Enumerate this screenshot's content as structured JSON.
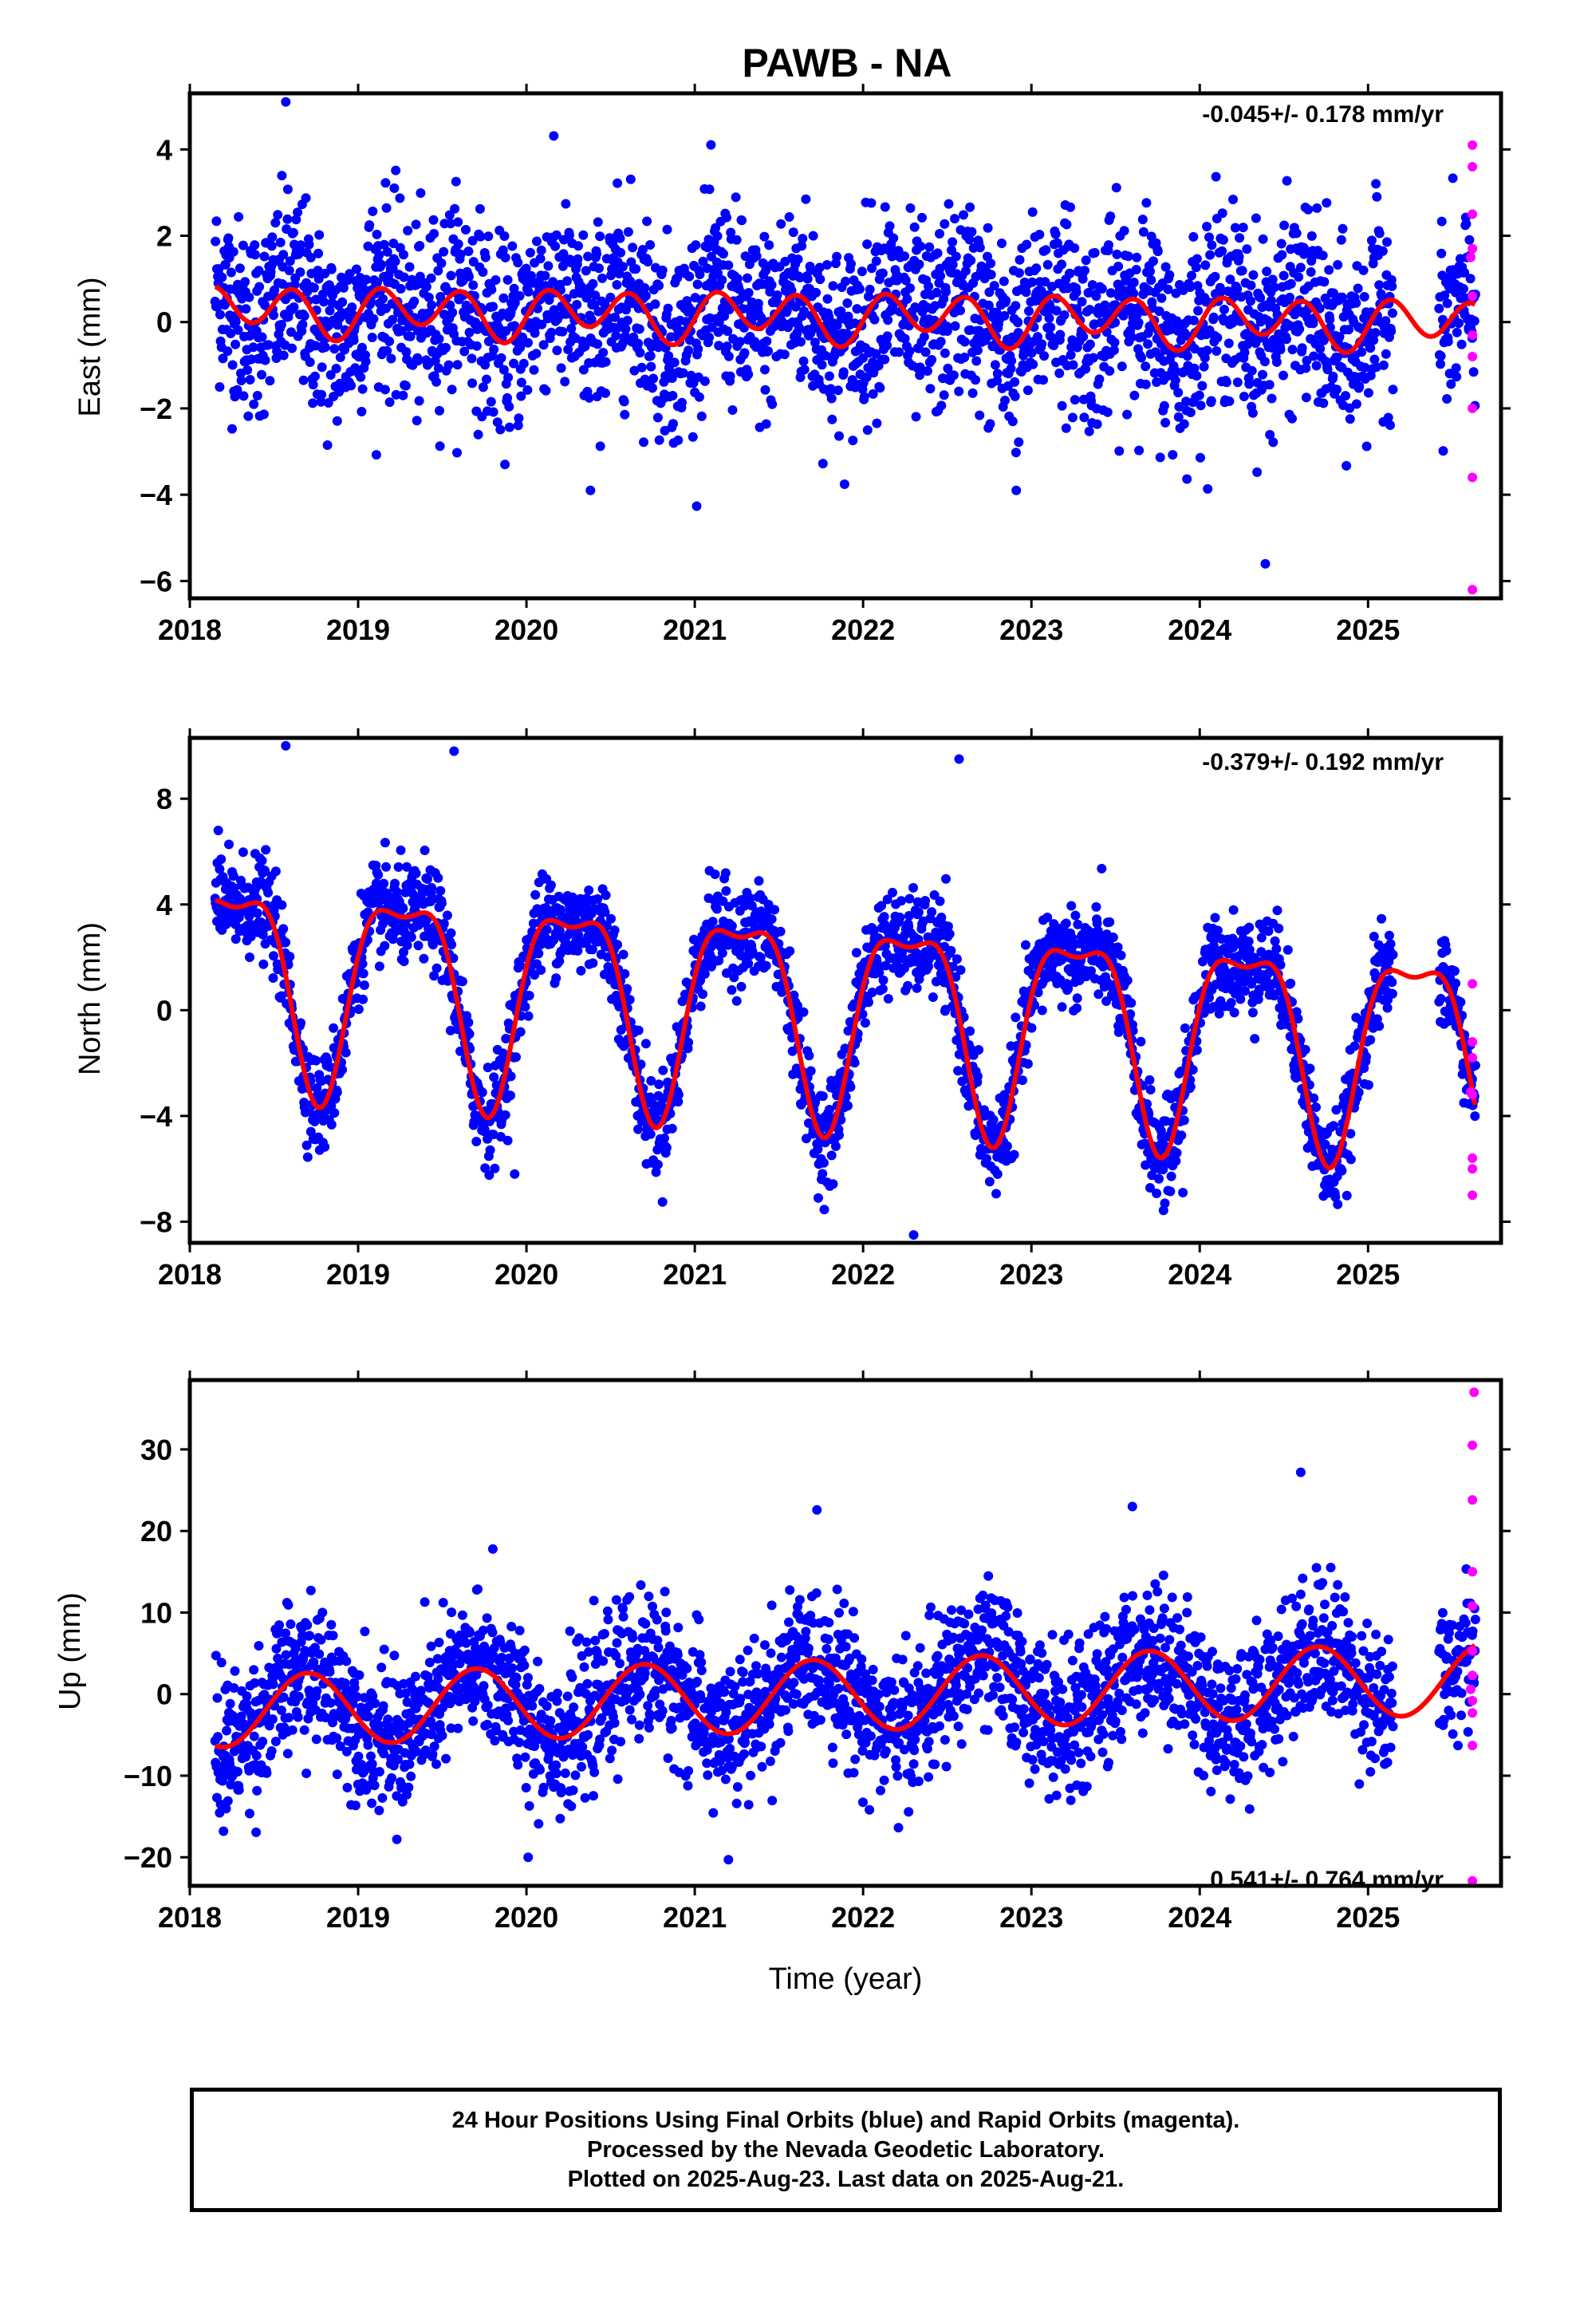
{
  "title": "PAWB - NA",
  "footer": {
    "line1": "24 Hour Positions Using Final Orbits (blue) and Rapid Orbits (magenta).",
    "line2": "Processed by the Nevada Geodetic Laboratory.",
    "line3": "Plotted on 2025-Aug-23. Last data on 2025-Aug-21."
  },
  "colors": {
    "final": "#0000ff",
    "rapid": "#ff00ff",
    "model": "#ff0000",
    "frame": "#000000"
  },
  "chart_data": [
    {
      "type": "scatter",
      "ylabel": "East (mm)",
      "xlabel": "",
      "rate_label": "-0.045+/- 0.178 mm/yr",
      "xlim": [
        2018.0,
        2025.79
      ],
      "ylim": [
        -6.4,
        5.3
      ],
      "xticks": [
        2018,
        2019,
        2020,
        2021,
        2022,
        2023,
        2024,
        2025
      ],
      "yticks": [
        4,
        2,
        0,
        -2,
        -4,
        -6
      ],
      "ytick_labels": [
        "4",
        "2",
        "0",
        "−2",
        "−4",
        "−6"
      ],
      "data_span": [
        2018.15,
        2025.64
      ],
      "model": {
        "offset": 0.3,
        "rate": -0.045,
        "annual_amp": 0.2,
        "annual_phase": 2018.35,
        "semiannual_amp": 0.5,
        "semiannual_phase": 2018.62
      },
      "noise_sd": 1.1,
      "outliers": [
        [
          2018.57,
          5.1
        ],
        [
          2024.39,
          -5.6
        ],
        [
          2020.38,
          -3.9
        ],
        [
          2022.91,
          -3.9
        ]
      ],
      "rapid_points": [
        [
          2025.62,
          4.1
        ],
        [
          2025.62,
          3.6
        ],
        [
          2025.62,
          2.5
        ],
        [
          2025.62,
          1.7
        ],
        [
          2025.61,
          1.5
        ],
        [
          2025.62,
          0.6
        ],
        [
          2025.62,
          -0.3
        ],
        [
          2025.62,
          -0.8
        ],
        [
          2025.62,
          -2.0
        ],
        [
          2025.62,
          -3.6
        ],
        [
          2025.62,
          -6.2
        ]
      ],
      "trend_series": "Final Orbits (blue)"
    },
    {
      "type": "scatter",
      "ylabel": "North (mm)",
      "xlabel": "",
      "rate_label": "-0.379+/- 0.192 mm/yr",
      "xlim": [
        2018.0,
        2025.79
      ],
      "ylim": [
        -8.8,
        10.3
      ],
      "xticks": [
        2018,
        2019,
        2020,
        2021,
        2022,
        2023,
        2024,
        2025
      ],
      "yticks": [
        8,
        4,
        0,
        -4,
        -8
      ],
      "ytick_labels": [
        "8",
        "4",
        "0",
        "−4",
        "−8"
      ],
      "data_span": [
        2018.15,
        2025.64
      ],
      "model": {
        "offset": 1.6,
        "rate": -0.379,
        "annual_amp": 3.7,
        "annual_phase": 2018.27,
        "semiannual_amp": 1.3,
        "semiannual_phase": 2018.02
      },
      "noise_sd": 0.9,
      "outliers": [
        [
          2018.57,
          10.0
        ],
        [
          2019.57,
          9.8
        ],
        [
          2022.57,
          9.5
        ],
        [
          2022.3,
          -8.5
        ],
        [
          2019.93,
          -6.2
        ],
        [
          2023.9,
          -6.9
        ]
      ],
      "rapid_points": [
        [
          2025.62,
          1.0
        ],
        [
          2025.62,
          -1.2
        ],
        [
          2025.62,
          -1.8
        ],
        [
          2025.61,
          -3.1
        ],
        [
          2025.62,
          -3.2
        ],
        [
          2025.62,
          -5.6
        ],
        [
          2025.62,
          -6.0
        ],
        [
          2025.62,
          -7.0
        ]
      ],
      "trend_series": "Final Orbits (blue)"
    },
    {
      "type": "scatter",
      "ylabel": "Up (mm)",
      "xlabel": "Time (year)",
      "rate_label": "0.541+/- 0.764 mm/yr",
      "xlim": [
        2018.0,
        2025.79
      ],
      "ylim": [
        -23.5,
        38.5
      ],
      "xticks": [
        2018,
        2019,
        2020,
        2021,
        2022,
        2023,
        2024,
        2025
      ],
      "yticks": [
        30,
        20,
        10,
        0,
        -10,
        -20
      ],
      "ytick_labels": [
        "30",
        "20",
        "10",
        "0",
        "−10",
        "−20"
      ],
      "data_span": [
        2018.15,
        2025.64
      ],
      "model": {
        "offset": -2.2,
        "rate": 0.541,
        "annual_amp": 4.4,
        "annual_phase": 2018.7,
        "semiannual_amp": 0.0,
        "semiannual_phase": 2018.0
      },
      "noise_sd": 4.3,
      "outliers": [
        [
          2019.8,
          17.8
        ],
        [
          2024.6,
          27.2
        ],
        [
          2023.6,
          23.0
        ],
        [
          2018.2,
          -16.8
        ],
        [
          2020.01,
          -20.0
        ],
        [
          2021.2,
          -20.3
        ],
        [
          2019.23,
          -17.8
        ]
      ],
      "rapid_points": [
        [
          2025.63,
          37.0
        ],
        [
          2025.62,
          30.5
        ],
        [
          2025.62,
          23.8
        ],
        [
          2025.62,
          15.0
        ],
        [
          2025.62,
          10.8
        ],
        [
          2025.62,
          5.3
        ],
        [
          2025.62,
          2.3
        ],
        [
          2025.61,
          0.6
        ],
        [
          2025.62,
          -0.8
        ],
        [
          2025.62,
          -2.3
        ],
        [
          2025.62,
          -6.3
        ],
        [
          2025.62,
          -22.9
        ]
      ],
      "trend_series": "Final Orbits (blue)"
    }
  ]
}
